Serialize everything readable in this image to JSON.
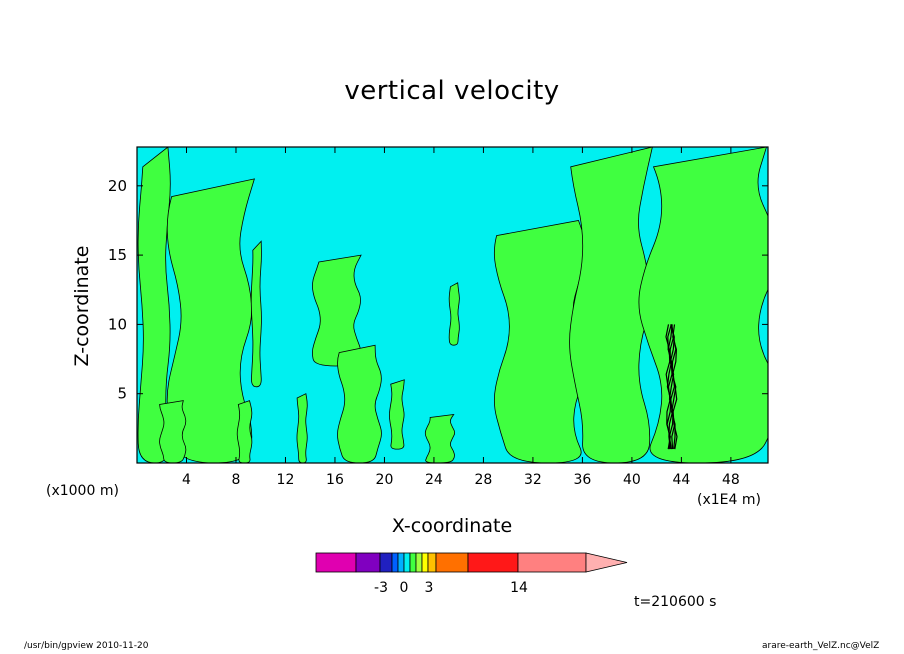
{
  "title": "vertical velocity",
  "x_axis": {
    "label": "X-coordinate",
    "unit_left": "(x1000 m)",
    "unit_right": "(x1E4 m)",
    "ticks": [
      "4",
      "8",
      "12",
      "16",
      "20",
      "24",
      "28",
      "32",
      "36",
      "40",
      "44",
      "48"
    ]
  },
  "y_axis": {
    "label": "Z-coordinate",
    "ticks": [
      "5",
      "10",
      "15",
      "20"
    ]
  },
  "colorbar": {
    "tick_labels": [
      "-3",
      "0",
      "3",
      "14"
    ],
    "colors": [
      "#e000b0",
      "#8000c0",
      "#2020c0",
      "#0060ff",
      "#00b0ff",
      "#00f0f0",
      "#40ff40",
      "#a0ff40",
      "#ffff00",
      "#ffc000",
      "#ff7000",
      "#ff1818",
      "#ff8080",
      "#ffb0b0"
    ]
  },
  "time_label": "t=210600 s",
  "footer_left": "/usr/bin/gpview   2010-11-20",
  "footer_right": "arare-earth_VelZ.nc@VelZ",
  "chart_data": {
    "type": "heatmap",
    "title": "vertical velocity",
    "xlabel": "X-coordinate",
    "ylabel": "Z-coordinate",
    "x_unit": "(x1000 m)",
    "xlim": [
      0,
      51
    ],
    "ylim": [
      0,
      22.8
    ],
    "grid": false,
    "colors": {
      "negative_small": "#00f0f0",
      "positive_small": "#40ff40",
      "strong": "#000000"
    },
    "x_ticks": [
      4,
      8,
      12,
      16,
      20,
      24,
      28,
      32,
      36,
      40,
      44,
      48
    ],
    "y_ticks": [
      5,
      10,
      15,
      20
    ],
    "green_bands": [
      {
        "x_from": 0.3,
        "x_to": 2.5,
        "z_from": 0,
        "z_to": 22.8
      },
      {
        "x_from": 3.0,
        "x_to": 8.8,
        "z_from": 0,
        "z_to": 20.5
      },
      {
        "x_from": 2.0,
        "x_to": 3.8,
        "z_from": 0,
        "z_to": 4.5
      },
      {
        "x_from": 8.2,
        "x_to": 9.2,
        "z_from": 0,
        "z_to": 4.5
      },
      {
        "x_from": 9.3,
        "x_to": 10.0,
        "z_from": 5.5,
        "z_to": 16.0
      },
      {
        "x_from": 14.5,
        "x_to": 17.8,
        "z_from": 7.0,
        "z_to": 15.0
      },
      {
        "x_from": 16.5,
        "x_to": 19.5,
        "z_from": 0,
        "z_to": 8.5
      },
      {
        "x_from": 13.0,
        "x_to": 13.7,
        "z_from": 0,
        "z_to": 5.0
      },
      {
        "x_from": 20.5,
        "x_to": 21.5,
        "z_from": 1.0,
        "z_to": 6.0
      },
      {
        "x_from": 23.5,
        "x_to": 25.5,
        "z_from": 0,
        "z_to": 3.5
      },
      {
        "x_from": 25.3,
        "x_to": 26.0,
        "z_from": 8.5,
        "z_to": 13.0
      },
      {
        "x_from": 29.5,
        "x_to": 35.8,
        "z_from": 0,
        "z_to": 17.5
      },
      {
        "x_from": 35.5,
        "x_to": 41.0,
        "z_from": 0,
        "z_to": 22.8
      },
      {
        "x_from": 41.5,
        "x_to": 51.0,
        "z_from": 0,
        "z_to": 22.8
      }
    ],
    "strong_updraft": {
      "x": 43.2,
      "z_from": 1.0,
      "z_to": 10.0
    },
    "colorbar_levels": [
      -3,
      0,
      3,
      14
    ]
  }
}
